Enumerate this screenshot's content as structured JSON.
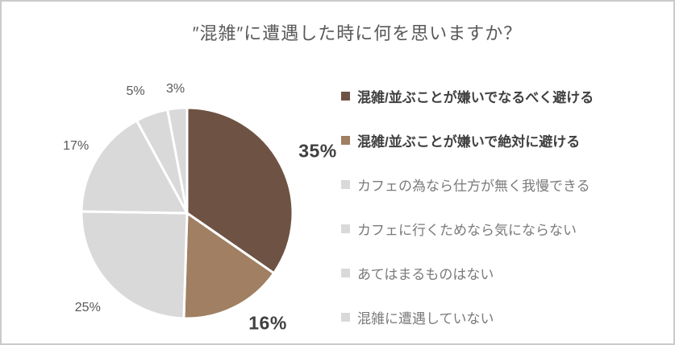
{
  "chart_data": {
    "type": "pie",
    "title": "″混雑″に遭遇した時に何を思いますか？",
    "labels": [
      "混雑/並ぶことが嫌いでなるべく避ける",
      "混雑/並ぶことが嫌いで絶対に避ける",
      "カフェの為なら仕方が無く我慢できる",
      "カフェに行くためなら気にならない",
      "あてはまるものはない",
      "混雑に遭遇していない"
    ],
    "values": [
      35,
      16,
      25,
      17,
      5,
      3
    ],
    "value_labels": [
      "35%",
      "16%",
      "25%",
      "17%",
      "5%",
      "3%"
    ],
    "colors": [
      "#6E5243",
      "#A07F62",
      "#D9D9D9",
      "#D9D9D9",
      "#D9D9D9",
      "#D9D9D9"
    ],
    "emphasized": [
      true,
      true,
      false,
      false,
      false,
      false
    ],
    "start_angle_deg": 0,
    "direction": "clockwise",
    "legend_position": "right",
    "slice_border_color": "#FFFFFF",
    "title_color": "#595959",
    "label_color_emphasis": "#404040",
    "label_color_muted": "#595959",
    "legend_text_emphasis_color": "#404040",
    "legend_text_muted_color": "#7A7A7A",
    "canvas_background": "#FFFFFF",
    "canvas_border_color": "#CBCBCB"
  }
}
